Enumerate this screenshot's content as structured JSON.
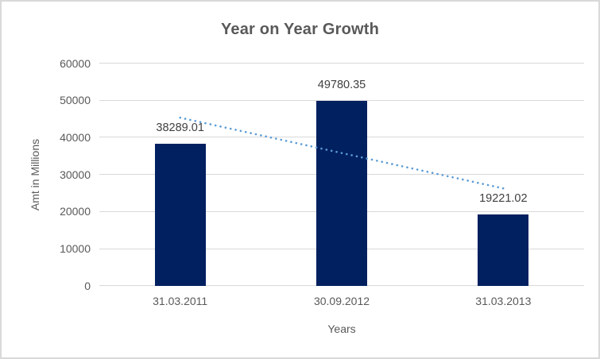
{
  "chart": {
    "colors": {
      "bar": "#002060",
      "trendline": "#5b9bd5",
      "gridline": "#d9d9d9",
      "border": "#d9d9d9",
      "background": "#ffffff",
      "title_text": "#595959",
      "axis_text": "#595959",
      "data_label_text": "#404040"
    }
  },
  "chart_data": {
    "type": "bar",
    "title": "Year on Year Growth",
    "xlabel": "Years",
    "ylabel": "Amt in Millions",
    "categories": [
      "31.03.2011",
      "30.09.2012",
      "31.03.2013"
    ],
    "values": [
      38289.01,
      49780.35,
      19221.02
    ],
    "data_labels": [
      "38289.01",
      "49780.35",
      "19221.02"
    ],
    "ylim": [
      0,
      60000
    ],
    "yticks": [
      0,
      10000,
      20000,
      30000,
      40000,
      50000,
      60000
    ],
    "grid": true,
    "legend": false,
    "trendline": {
      "type": "linear",
      "style": "dotted",
      "start_value": 45297.5,
      "end_value": 26229.5
    }
  }
}
